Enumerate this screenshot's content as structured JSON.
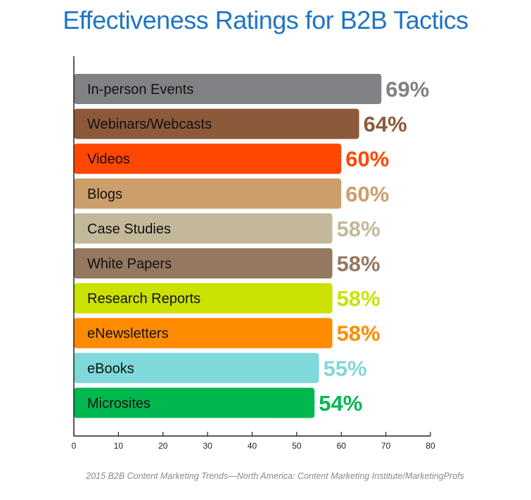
{
  "chart_data": {
    "type": "bar",
    "orientation": "horizontal",
    "title": "Effectiveness Ratings for B2B Tactics",
    "xlim": [
      0,
      80
    ],
    "xticks": [
      0,
      10,
      20,
      30,
      40,
      50,
      60,
      70,
      80
    ],
    "grid": false,
    "categories": [
      "In-person Events",
      "Webinars/Webcasts",
      "Videos",
      "Blogs",
      "Case Studies",
      "White Papers",
      "Research Reports",
      "eNewsletters",
      "eBooks",
      "Microsites"
    ],
    "values": [
      69,
      64,
      60,
      60,
      58,
      58,
      58,
      58,
      55,
      54
    ],
    "value_labels": [
      "69%",
      "64%",
      "60%",
      "60%",
      "58%",
      "58%",
      "58%",
      "58%",
      "55%",
      "54%"
    ],
    "colors": [
      "#808285",
      "#8c5a3a",
      "#ff4700",
      "#cc9e6b",
      "#c4b89a",
      "#957860",
      "#cbe100",
      "#ff8c00",
      "#7fd8da",
      "#00b84f"
    ]
  },
  "source_note": "2015 B2B Content Marketing Trends—North America: Content Marketing Institute/MarketingProfs"
}
